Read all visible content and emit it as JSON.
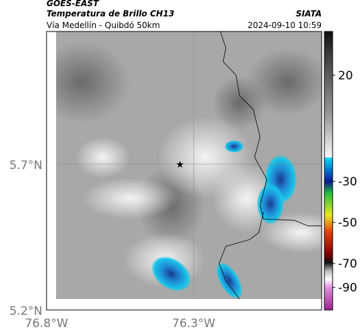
{
  "header": {
    "title": "GOES-EAST",
    "subtitle": "Temperatura de Brillo CH13",
    "location": "Vía Medellín - Quibdó 50km",
    "source": "SIATA",
    "datetime": "2024-09-10 10:59"
  },
  "axes": {
    "lat_labels": [
      "5.7°N",
      "5.2°N"
    ],
    "lon_labels": [
      "76.8°W",
      "76.3°W"
    ]
  },
  "colorbar": {
    "labels": [
      "20",
      "-30",
      "-50",
      "-70",
      "-90"
    ]
  }
}
